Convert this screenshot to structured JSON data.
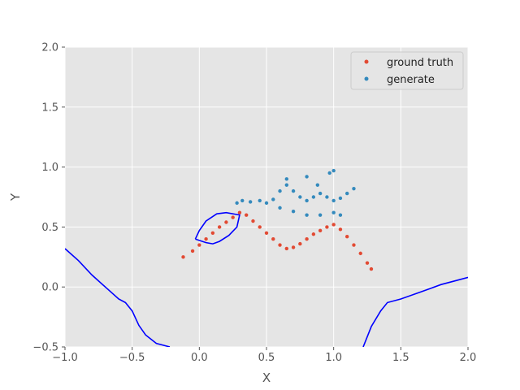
{
  "chart_data": {
    "type": "scatter",
    "xlabel": "X",
    "ylabel": "Y",
    "xlim": [
      -1.0,
      2.0
    ],
    "ylim": [
      -0.5,
      2.0
    ],
    "xticks": [
      "−1.0",
      "−0.5",
      "0.0",
      "0.5",
      "1.0",
      "1.5",
      "2.0"
    ],
    "yticks": [
      "−0.5",
      "0.0",
      "0.5",
      "1.0",
      "1.5",
      "2.0"
    ],
    "xtick_values": [
      -1.0,
      -0.5,
      0.0,
      0.5,
      1.0,
      1.5,
      2.0
    ],
    "ytick_values": [
      -0.5,
      0.0,
      0.5,
      1.0,
      1.5,
      2.0
    ],
    "grid": true,
    "legend_placement": "top-right",
    "series": [
      {
        "name": "ground truth",
        "color": "#E24A33",
        "points": [
          [
            -0.12,
            0.25
          ],
          [
            -0.05,
            0.3
          ],
          [
            0.0,
            0.35
          ],
          [
            0.05,
            0.4
          ],
          [
            0.1,
            0.45
          ],
          [
            0.15,
            0.5
          ],
          [
            0.2,
            0.54
          ],
          [
            0.25,
            0.58
          ],
          [
            0.3,
            0.62
          ],
          [
            0.35,
            0.6
          ],
          [
            0.4,
            0.55
          ],
          [
            0.45,
            0.5
          ],
          [
            0.5,
            0.45
          ],
          [
            0.55,
            0.4
          ],
          [
            0.6,
            0.35
          ],
          [
            0.65,
            0.32
          ],
          [
            0.7,
            0.33
          ],
          [
            0.75,
            0.36
          ],
          [
            0.8,
            0.4
          ],
          [
            0.85,
            0.44
          ],
          [
            0.9,
            0.47
          ],
          [
            0.95,
            0.5
          ],
          [
            1.0,
            0.52
          ],
          [
            1.05,
            0.48
          ],
          [
            1.1,
            0.42
          ],
          [
            1.15,
            0.35
          ],
          [
            1.2,
            0.28
          ],
          [
            1.25,
            0.2
          ],
          [
            1.28,
            0.15
          ]
        ]
      },
      {
        "name": "generate",
        "color": "#348ABD",
        "points": [
          [
            0.28,
            0.7
          ],
          [
            0.32,
            0.72
          ],
          [
            0.38,
            0.71
          ],
          [
            0.45,
            0.72
          ],
          [
            0.5,
            0.7
          ],
          [
            0.55,
            0.73
          ],
          [
            0.6,
            0.8
          ],
          [
            0.65,
            0.85
          ],
          [
            0.7,
            0.8
          ],
          [
            0.75,
            0.75
          ],
          [
            0.8,
            0.72
          ],
          [
            0.85,
            0.75
          ],
          [
            0.9,
            0.78
          ],
          [
            0.95,
            0.75
          ],
          [
            1.0,
            0.72
          ],
          [
            1.05,
            0.74
          ],
          [
            1.1,
            0.78
          ],
          [
            1.15,
            0.82
          ],
          [
            0.6,
            0.66
          ],
          [
            0.7,
            0.63
          ],
          [
            0.8,
            0.6
          ],
          [
            0.9,
            0.6
          ],
          [
            1.0,
            0.62
          ],
          [
            1.05,
            0.6
          ],
          [
            0.65,
            0.9
          ],
          [
            0.8,
            0.92
          ],
          [
            0.88,
            0.85
          ],
          [
            0.97,
            0.95
          ],
          [
            1.0,
            0.97
          ]
        ]
      }
    ],
    "contours": [
      {
        "color": "#0000ff",
        "points": [
          [
            -0.03,
            0.4
          ],
          [
            0.0,
            0.47
          ],
          [
            0.05,
            0.55
          ],
          [
            0.13,
            0.61
          ],
          [
            0.2,
            0.62
          ],
          [
            0.3,
            0.6
          ],
          [
            0.28,
            0.5
          ],
          [
            0.22,
            0.43
          ],
          [
            0.15,
            0.38
          ],
          [
            0.1,
            0.36
          ],
          [
            0.05,
            0.37
          ],
          [
            -0.03,
            0.4
          ]
        ]
      },
      {
        "color": "#0000ff",
        "points": [
          [
            -1.0,
            0.32
          ],
          [
            -0.9,
            0.22
          ],
          [
            -0.8,
            0.1
          ],
          [
            -0.7,
            0.0
          ],
          [
            -0.6,
            -0.1
          ],
          [
            -0.55,
            -0.13
          ],
          [
            -0.5,
            -0.2
          ],
          [
            -0.45,
            -0.32
          ],
          [
            -0.4,
            -0.4
          ],
          [
            -0.32,
            -0.47
          ],
          [
            -0.22,
            -0.5
          ]
        ]
      },
      {
        "color": "#0000ff",
        "points": [
          [
            1.22,
            -0.5
          ],
          [
            1.28,
            -0.33
          ],
          [
            1.35,
            -0.2
          ],
          [
            1.4,
            -0.13
          ],
          [
            1.5,
            -0.1
          ],
          [
            1.6,
            -0.06
          ],
          [
            1.7,
            -0.02
          ],
          [
            1.8,
            0.02
          ],
          [
            1.9,
            0.05
          ],
          [
            2.0,
            0.08
          ]
        ]
      }
    ]
  }
}
